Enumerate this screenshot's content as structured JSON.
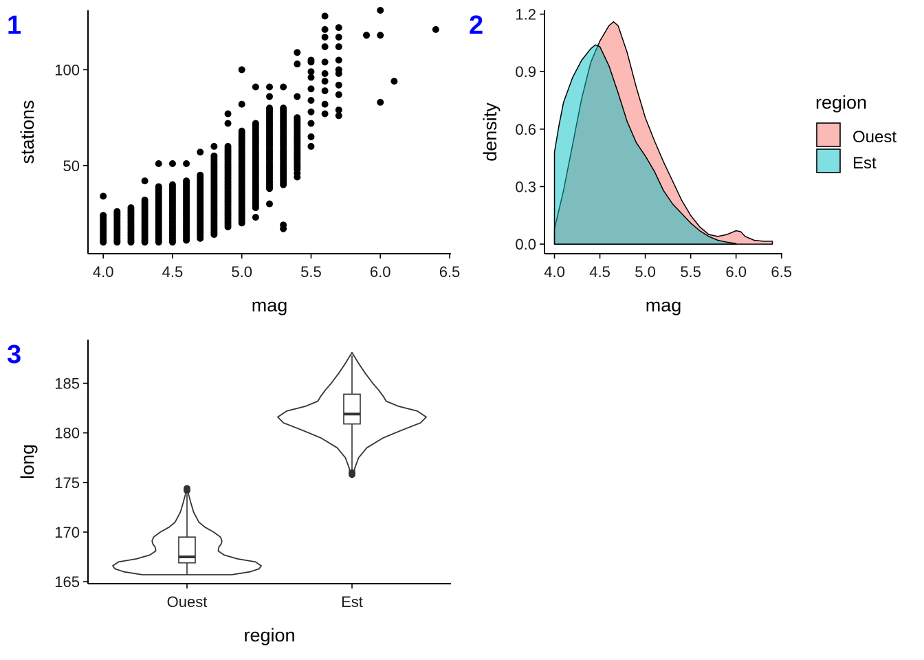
{
  "panel_tags": {
    "a": "1",
    "b": "2",
    "c": "3",
    "color": "#0000ff"
  },
  "chart_data": [
    {
      "type": "scatter",
      "tag": "1",
      "title": "",
      "xlabel": "mag",
      "ylabel": "stations",
      "xlim": [
        3.89,
        6.51
      ],
      "ylim": [
        4,
        131
      ],
      "xticks": [
        4.0,
        4.5,
        5.0,
        5.5,
        6.0,
        6.5
      ],
      "xtick_labels": [
        "4.0",
        "4.5",
        "5.0",
        "5.5",
        "6.0",
        "6.5"
      ],
      "yticks": [
        50,
        100
      ],
      "ytick_labels": [
        "50",
        "100"
      ],
      "point_color": "#000000",
      "columns": [
        {
          "x": 4.0,
          "min": 10,
          "max": 24
        },
        {
          "x": 4.1,
          "min": 10,
          "max": 26
        },
        {
          "x": 4.2,
          "min": 10,
          "max": 28
        },
        {
          "x": 4.3,
          "min": 10,
          "max": 32
        },
        {
          "x": 4.4,
          "min": 10,
          "max": 39
        },
        {
          "x": 4.5,
          "min": 10,
          "max": 40
        },
        {
          "x": 4.6,
          "min": 11,
          "max": 42
        },
        {
          "x": 4.7,
          "min": 12,
          "max": 45
        },
        {
          "x": 4.8,
          "min": 14,
          "max": 55
        },
        {
          "x": 4.9,
          "min": 18,
          "max": 60
        },
        {
          "x": 5.0,
          "min": 20,
          "max": 68
        },
        {
          "x": 5.1,
          "min": 28,
          "max": 72
        },
        {
          "x": 5.2,
          "min": 38,
          "max": 80
        },
        {
          "x": 5.3,
          "min": 40,
          "max": 80
        },
        {
          "x": 5.4,
          "min": 48,
          "max": 75
        }
      ],
      "points": [
        [
          4.0,
          34
        ],
        [
          4.3,
          42
        ],
        [
          4.4,
          51
        ],
        [
          4.5,
          51
        ],
        [
          4.6,
          51
        ],
        [
          4.7,
          57
        ],
        [
          4.8,
          60
        ],
        [
          4.9,
          72
        ],
        [
          4.9,
          77
        ],
        [
          5.0,
          82
        ],
        [
          5.0,
          100
        ],
        [
          5.1,
          91
        ],
        [
          5.1,
          23
        ],
        [
          5.2,
          30
        ],
        [
          5.2,
          91
        ],
        [
          5.2,
          86
        ],
        [
          5.3,
          91
        ],
        [
          5.3,
          19
        ],
        [
          5.3,
          17
        ],
        [
          5.4,
          44
        ],
        [
          5.4,
          46
        ],
        [
          5.4,
          86
        ],
        [
          5.4,
          103
        ],
        [
          5.4,
          109
        ],
        [
          5.5,
          60
        ],
        [
          5.5,
          65
        ],
        [
          5.5,
          72
        ],
        [
          5.5,
          78
        ],
        [
          5.5,
          84
        ],
        [
          5.5,
          90
        ],
        [
          5.5,
          96
        ],
        [
          5.5,
          99
        ],
        [
          5.5,
          104
        ],
        [
          5.5,
          105
        ],
        [
          5.6,
          77
        ],
        [
          5.6,
          82
        ],
        [
          5.6,
          89
        ],
        [
          5.6,
          94
        ],
        [
          5.6,
          98
        ],
        [
          5.6,
          104
        ],
        [
          5.6,
          112
        ],
        [
          5.6,
          117
        ],
        [
          5.6,
          121
        ],
        [
          5.6,
          128
        ],
        [
          5.7,
          76
        ],
        [
          5.7,
          79
        ],
        [
          5.7,
          87
        ],
        [
          5.7,
          92
        ],
        [
          5.7,
          98
        ],
        [
          5.7,
          100
        ],
        [
          5.7,
          105
        ],
        [
          5.7,
          112
        ],
        [
          5.7,
          117
        ],
        [
          5.7,
          122
        ],
        [
          5.9,
          118
        ],
        [
          5.9,
          118
        ],
        [
          6.0,
          83
        ],
        [
          6.0,
          118
        ],
        [
          6.0,
          131
        ],
        [
          6.1,
          94
        ],
        [
          6.4,
          121
        ]
      ]
    },
    {
      "type": "area",
      "tag": "2",
      "title": "",
      "xlabel": "mag",
      "ylabel": "density",
      "xlim": [
        3.89,
        6.51
      ],
      "ylim": [
        -0.05,
        1.22
      ],
      "xticks": [
        4.0,
        4.5,
        5.0,
        5.5,
        6.0,
        6.5
      ],
      "xtick_labels": [
        "4.0",
        "4.5",
        "5.0",
        "5.5",
        "6.0",
        "6.5"
      ],
      "yticks": [
        0.0,
        0.3,
        0.6,
        0.9,
        1.2
      ],
      "ytick_labels": [
        "0.0",
        "0.3",
        "0.6",
        "0.9",
        "1.2"
      ],
      "legend": {
        "title": "region",
        "position": "right"
      },
      "series": [
        {
          "name": "Ouest",
          "color": "#f8766d",
          "points": [
            [
              4.0,
              0.08
            ],
            [
              4.1,
              0.28
            ],
            [
              4.2,
              0.52
            ],
            [
              4.3,
              0.76
            ],
            [
              4.4,
              0.95
            ],
            [
              4.5,
              1.06
            ],
            [
              4.6,
              1.14
            ],
            [
              4.65,
              1.16
            ],
            [
              4.7,
              1.14
            ],
            [
              4.8,
              1.0
            ],
            [
              4.9,
              0.82
            ],
            [
              5.0,
              0.66
            ],
            [
              5.1,
              0.54
            ],
            [
              5.2,
              0.43
            ],
            [
              5.3,
              0.33
            ],
            [
              5.4,
              0.23
            ],
            [
              5.5,
              0.15
            ],
            [
              5.6,
              0.09
            ],
            [
              5.7,
              0.05
            ],
            [
              5.8,
              0.04
            ],
            [
              5.9,
              0.05
            ],
            [
              6.0,
              0.07
            ],
            [
              6.05,
              0.065
            ],
            [
              6.1,
              0.04
            ],
            [
              6.2,
              0.02
            ],
            [
              6.3,
              0.015
            ],
            [
              6.4,
              0.015
            ]
          ]
        },
        {
          "name": "Est",
          "color": "#00bfc4",
          "points": [
            [
              4.0,
              0.48
            ],
            [
              4.05,
              0.62
            ],
            [
              4.1,
              0.74
            ],
            [
              4.2,
              0.87
            ],
            [
              4.3,
              0.96
            ],
            [
              4.4,
              1.02
            ],
            [
              4.45,
              1.04
            ],
            [
              4.5,
              1.03
            ],
            [
              4.6,
              0.93
            ],
            [
              4.7,
              0.79
            ],
            [
              4.8,
              0.64
            ],
            [
              4.9,
              0.53
            ],
            [
              5.0,
              0.46
            ],
            [
              5.1,
              0.38
            ],
            [
              5.2,
              0.28
            ],
            [
              5.3,
              0.21
            ],
            [
              5.4,
              0.16
            ],
            [
              5.5,
              0.11
            ],
            [
              5.6,
              0.07
            ],
            [
              5.7,
              0.04
            ],
            [
              5.8,
              0.02
            ],
            [
              5.9,
              0.01
            ],
            [
              6.0,
              0.003
            ]
          ]
        }
      ]
    },
    {
      "type": "violin",
      "tag": "3",
      "title": "",
      "xlabel": "region",
      "ylabel": "long",
      "ylim": [
        164.8,
        189.4
      ],
      "yticks": [
        165,
        170,
        175,
        180,
        185
      ],
      "ytick_labels": [
        "165",
        "170",
        "175",
        "180",
        "185"
      ],
      "categories": [
        "Ouest",
        "Est"
      ],
      "line_color": "#333333",
      "groups": [
        {
          "name": "Ouest",
          "min": 165.7,
          "max": 174.4,
          "q1": 166.9,
          "median": 167.5,
          "q3": 169.5,
          "whisker_low": 165.7,
          "whisker_high": 173.8,
          "outliers": [
            174.2,
            174.4
          ],
          "profile": [
            [
              165.7,
              0.6
            ],
            [
              166.0,
              0.85
            ],
            [
              166.3,
              0.97
            ],
            [
              166.6,
              1.0
            ],
            [
              167.0,
              0.92
            ],
            [
              167.3,
              0.68
            ],
            [
              167.7,
              0.5
            ],
            [
              168.1,
              0.42
            ],
            [
              168.5,
              0.43
            ],
            [
              168.8,
              0.46
            ],
            [
              169.1,
              0.47
            ],
            [
              169.5,
              0.45
            ],
            [
              170.0,
              0.36
            ],
            [
              170.5,
              0.24
            ],
            [
              171.0,
              0.16
            ],
            [
              172.0,
              0.09
            ],
            [
              173.0,
              0.05
            ],
            [
              174.4,
              0.0
            ]
          ]
        },
        {
          "name": "Est",
          "min": 175.8,
          "max": 188.1,
          "q1": 180.9,
          "median": 181.9,
          "q3": 183.9,
          "whisker_low": 176.2,
          "whisker_high": 187.8,
          "outliers": [
            175.8,
            176.0
          ],
          "profile": [
            [
              175.8,
              0.02
            ],
            [
              176.5,
              0.04
            ],
            [
              177.5,
              0.09
            ],
            [
              178.5,
              0.2
            ],
            [
              179.5,
              0.42
            ],
            [
              180.3,
              0.68
            ],
            [
              181.0,
              0.92
            ],
            [
              181.6,
              1.0
            ],
            [
              182.2,
              0.88
            ],
            [
              182.7,
              0.62
            ],
            [
              183.2,
              0.46
            ],
            [
              183.7,
              0.42
            ],
            [
              184.3,
              0.36
            ],
            [
              185.0,
              0.28
            ],
            [
              186.0,
              0.18
            ],
            [
              187.0,
              0.09
            ],
            [
              188.1,
              0.0
            ]
          ]
        }
      ]
    }
  ]
}
